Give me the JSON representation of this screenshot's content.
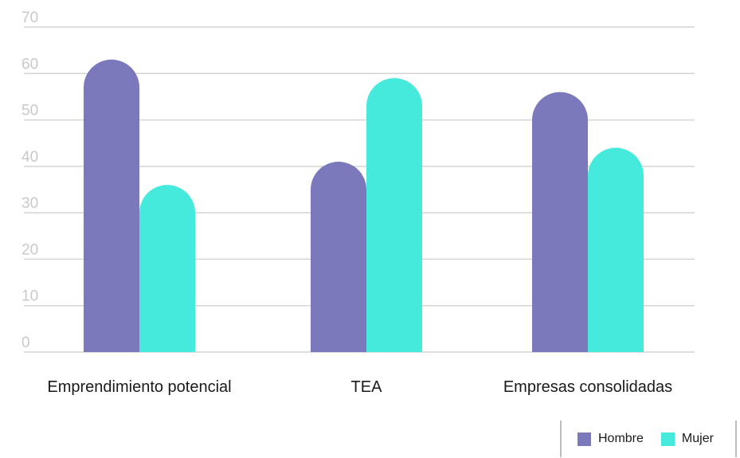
{
  "colors": {
    "Hombre": "#7b78bb",
    "Mujer": "#46eadd",
    "grid": "#d4d4d4",
    "tick": "#c9c9c9"
  },
  "chart_data": {
    "type": "bar",
    "categories": [
      "Emprendimiento potencial",
      "TEA",
      "Empresas consolidadas"
    ],
    "series": [
      {
        "name": "Hombre",
        "values": [
          63,
          41,
          56
        ]
      },
      {
        "name": "Mujer",
        "values": [
          36,
          59,
          44
        ]
      }
    ],
    "yticks": [
      0,
      10,
      20,
      30,
      40,
      50,
      60,
      70
    ],
    "ylim": [
      0,
      70
    ],
    "grid": true,
    "legend": "bottom-right",
    "title": "",
    "xlabel": "",
    "ylabel": ""
  },
  "legend": {
    "items": [
      "Hombre",
      "Mujer"
    ]
  }
}
